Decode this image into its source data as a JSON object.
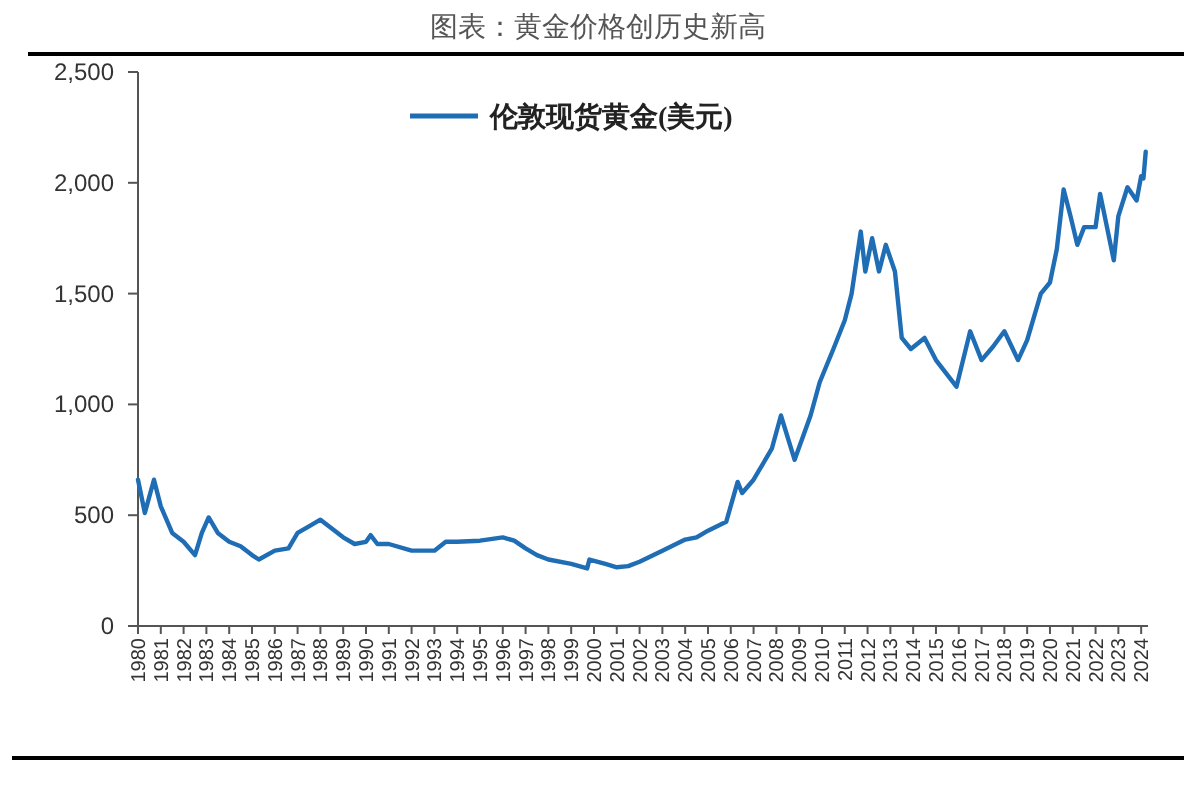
{
  "chart_data": {
    "type": "line",
    "title": "图表：黄金价格创历史新高",
    "x": [
      1980.0,
      1980.3,
      1980.7,
      1981.0,
      1981.5,
      1982.0,
      1982.5,
      1982.8,
      1983.1,
      1983.5,
      1984.0,
      1984.5,
      1985.0,
      1985.3,
      1986.0,
      1986.6,
      1987.0,
      1987.5,
      1988.0,
      1988.5,
      1989.0,
      1989.5,
      1990.0,
      1990.2,
      1990.5,
      1991.0,
      1992.0,
      1993.0,
      1993.5,
      1994.0,
      1995.0,
      1996.0,
      1996.5,
      1997.0,
      1997.5,
      1998.0,
      1999.0,
      1999.7,
      1999.8,
      2000.5,
      2001.0,
      2001.5,
      2002.0,
      2003.0,
      2004.0,
      2004.5,
      2005.0,
      2005.8,
      2006.3,
      2006.5,
      2007.0,
      2007.8,
      2008.2,
      2008.8,
      2009.5,
      2009.9,
      2010.5,
      2011.0,
      2011.3,
      2011.7,
      2011.9,
      2012.2,
      2012.5,
      2012.8,
      2013.2,
      2013.5,
      2013.9,
      2014.5,
      2015.0,
      2015.9,
      2016.5,
      2017.0,
      2017.5,
      2018.0,
      2018.6,
      2019.0,
      2019.6,
      2020.0,
      2020.3,
      2020.6,
      2020.9,
      2021.2,
      2021.5,
      2022.0,
      2022.2,
      2022.8,
      2023.0,
      2023.4,
      2023.8,
      2024.0,
      2024.1,
      2024.2
    ],
    "series": [
      {
        "name": "伦敦现货黄金(美元)",
        "color": "#1f6db5",
        "values": [
          660,
          510,
          660,
          540,
          420,
          380,
          320,
          420,
          490,
          420,
          380,
          360,
          320,
          300,
          340,
          350,
          420,
          450,
          480,
          440,
          400,
          370,
          380,
          410,
          370,
          370,
          340,
          340,
          380,
          380,
          385,
          400,
          385,
          350,
          320,
          300,
          280,
          260,
          300,
          280,
          265,
          270,
          290,
          340,
          390,
          400,
          430,
          470,
          650,
          600,
          660,
          800,
          950,
          750,
          950,
          1100,
          1250,
          1380,
          1500,
          1780,
          1600,
          1750,
          1600,
          1720,
          1600,
          1300,
          1250,
          1300,
          1200,
          1080,
          1330,
          1200,
          1260,
          1330,
          1200,
          1290,
          1500,
          1550,
          1700,
          1970,
          1850,
          1720,
          1800,
          1800,
          1950,
          1650,
          1850,
          1980,
          1920,
          2030,
          2020,
          2140
        ]
      }
    ],
    "xlim": [
      1980,
      2024.3
    ],
    "xticks": [
      1980,
      1981,
      1982,
      1983,
      1984,
      1985,
      1986,
      1987,
      1988,
      1989,
      1990,
      1991,
      1992,
      1993,
      1994,
      1995,
      1996,
      1997,
      1998,
      1999,
      2000,
      2001,
      2002,
      2003,
      2004,
      2005,
      2006,
      2007,
      2008,
      2009,
      2010,
      2011,
      2012,
      2013,
      2014,
      2015,
      2016,
      2017,
      2018,
      2019,
      2020,
      2021,
      2022,
      2023,
      2024
    ],
    "ylim": [
      0,
      2500
    ],
    "yticks": [
      {
        "value": 0,
        "label": "0"
      },
      {
        "value": 500,
        "label": "500"
      },
      {
        "value": 1000,
        "label": "1,000"
      },
      {
        "value": 1500,
        "label": "1,500"
      },
      {
        "value": 2000,
        "label": "2,000"
      },
      {
        "value": 2500,
        "label": "2,500"
      }
    ],
    "grid": false,
    "legend": "top",
    "line_style": "solid",
    "marker": "none"
  }
}
